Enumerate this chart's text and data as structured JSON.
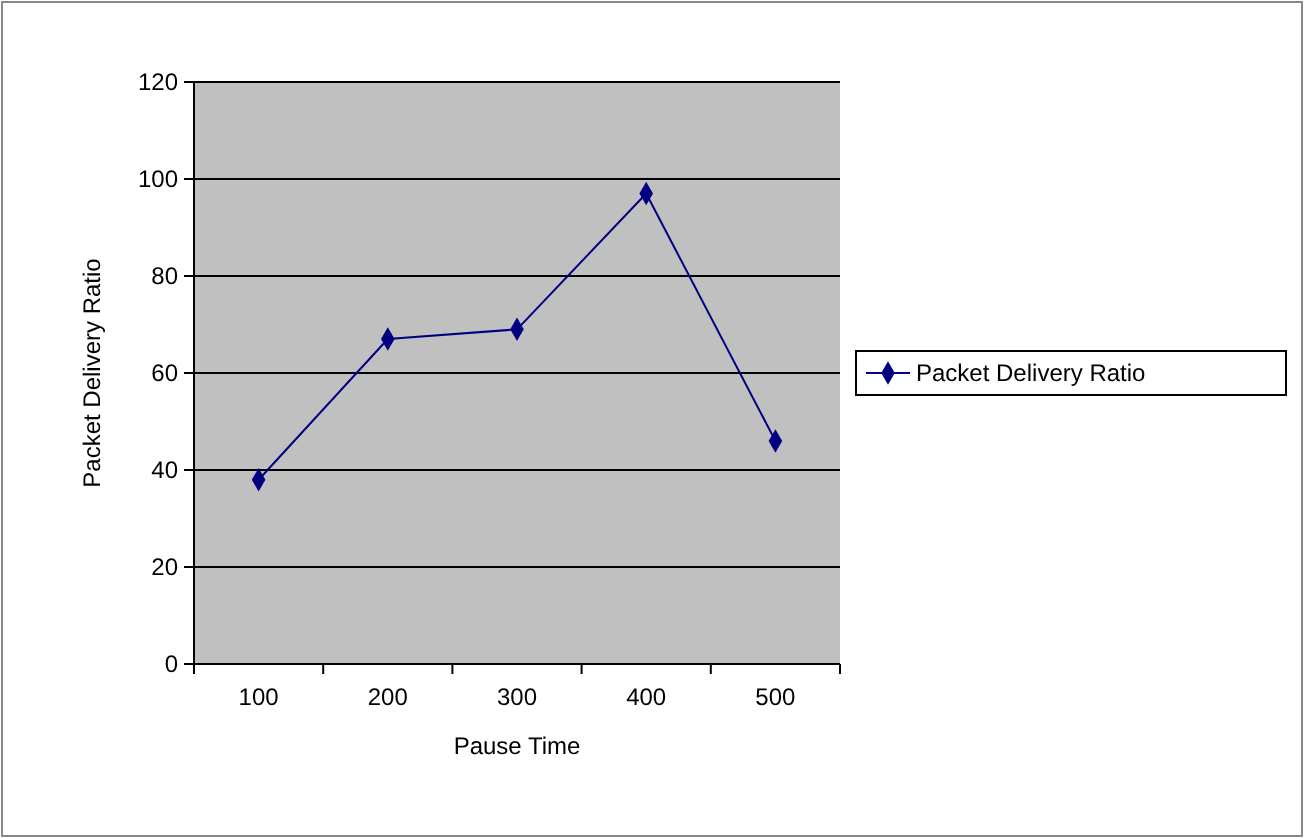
{
  "chart_data": {
    "type": "line",
    "xlabel": "Pause Time",
    "ylabel": "Packet Delivery Ratio",
    "categories": [
      "100",
      "200",
      "300",
      "400",
      "500"
    ],
    "series": [
      {
        "name": "Packet Delivery Ratio",
        "color": "#000080",
        "values": [
          38,
          67,
          69,
          97,
          46
        ]
      }
    ],
    "ylim": [
      0,
      120
    ],
    "yticks": [
      0,
      20,
      40,
      60,
      80,
      100,
      120
    ],
    "grid": "y",
    "legend": "right",
    "marker": "diamond",
    "line_style": "solid"
  }
}
